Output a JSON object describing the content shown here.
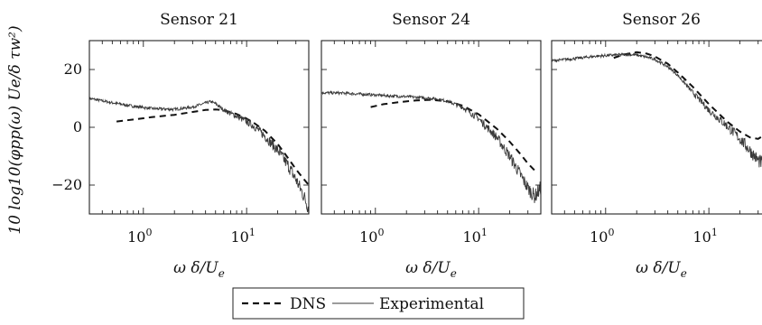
{
  "chart_data": {
    "type": "line",
    "layout": "three panels sharing y-axis",
    "xscale": "log",
    "xlim": [
      0.3,
      40
    ],
    "ylim": [
      -30,
      30
    ],
    "xticks": [
      1,
      10
    ],
    "xtick_labels": [
      [
        "10",
        "0"
      ],
      [
        "10",
        "1"
      ]
    ],
    "yticks": [
      -20,
      0,
      20
    ],
    "ytick_labels": [
      "−20",
      "0",
      "20"
    ],
    "xlabel": "ω δ/U",
    "xlabel_sub": "e",
    "ylabel": "10 log10(φpp(ω) Ue/δ τw²)",
    "legend": {
      "position": "bottom-center",
      "entries": [
        "DNS",
        "Experimental"
      ]
    },
    "colors": {
      "dns": "#111111",
      "experimental": "#3a3a3a"
    },
    "panels": [
      {
        "title": "Sensor 21",
        "series": [
          {
            "name": "DNS",
            "style": "dashed",
            "x": [
              0.55,
              0.8,
              1.2,
              2.0,
              3.0,
              4.0,
              5.0,
              6.0,
              8.0,
              10,
              12,
              15,
              20,
              25,
              30,
              35,
              40
            ],
            "y": [
              2.0,
              2.7,
              3.5,
              4.3,
              5.3,
              6.0,
              6.2,
              5.9,
              4.6,
              3.0,
              1.3,
              -1.2,
              -5.8,
              -10.5,
              -14.5,
              -17.5,
              -20
            ]
          },
          {
            "name": "Experimental",
            "style": "solid",
            "x": [
              0.3,
              0.5,
              0.8,
              1.2,
              2.0,
              3.0,
              4.0,
              4.5,
              5.0,
              6.0,
              8.0,
              10,
              12,
              15,
              20,
              25,
              30,
              35,
              40
            ],
            "y": [
              10.0,
              8.5,
              7.3,
              6.5,
              6.2,
              7.0,
              8.4,
              8.9,
              8.2,
              6.0,
              3.8,
              2.0,
              0.2,
              -3.0,
              -8.0,
              -13.0,
              -18.0,
              -23.0,
              -28.0
            ]
          }
        ]
      },
      {
        "title": "Sensor 24",
        "series": [
          {
            "name": "DNS",
            "style": "dashed",
            "x": [
              0.9,
              1.2,
              1.8,
              2.5,
              3.5,
              5.0,
              7.0,
              10,
              15,
              20,
              25,
              30,
              35
            ],
            "y": [
              7.0,
              8.0,
              8.8,
              9.3,
              9.5,
              9.0,
              7.5,
              4.5,
              -0.5,
              -5.0,
              -9.0,
              -12.5,
              -15.0
            ]
          },
          {
            "name": "Experimental",
            "style": "solid",
            "x": [
              0.3,
              0.5,
              0.8,
              1.2,
              2.0,
              3.0,
              4.0,
              5.0,
              7.0,
              10,
              15,
              20,
              25,
              30,
              35,
              40
            ],
            "y": [
              12.0,
              11.8,
              11.4,
              11.0,
              10.6,
              10.2,
              9.8,
              9.0,
              7.0,
              3.0,
              -3.5,
              -10.0,
              -16.0,
              -21.0,
              -24.0,
              -21.0
            ]
          }
        ]
      },
      {
        "title": "Sensor 26",
        "series": [
          {
            "name": "DNS",
            "style": "dashed",
            "x": [
              1.2,
              1.5,
              2.0,
              2.5,
              3.0,
              4.0,
              5.0,
              7.0,
              10,
              15,
              20,
              25,
              30,
              35,
              40
            ],
            "y": [
              24.0,
              25.2,
              26.0,
              25.5,
              24.5,
              22.0,
              19.0,
              14.0,
              8.0,
              2.0,
              -1.5,
              -3.5,
              -4.0,
              -2.5,
              -1.0
            ]
          },
          {
            "name": "Experimental",
            "style": "solid",
            "x": [
              0.3,
              0.5,
              0.8,
              1.2,
              1.6,
              2.0,
              2.5,
              3.0,
              4.0,
              5.0,
              7.0,
              10,
              15,
              20,
              25,
              30,
              35,
              40
            ],
            "y": [
              23.0,
              23.8,
              24.6,
              25.0,
              25.2,
              25.0,
              24.3,
              23.5,
              21.0,
              18.0,
              12.0,
              6.0,
              0.5,
              -4.0,
              -8.0,
              -11.5,
              -13.0,
              -11.0
            ]
          }
        ]
      }
    ]
  }
}
